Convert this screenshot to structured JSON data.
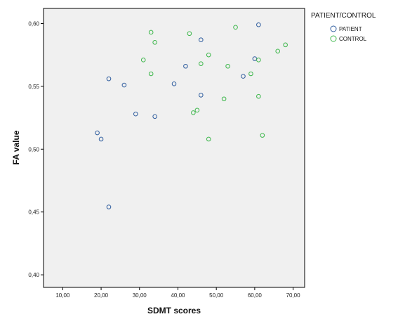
{
  "chart_data": {
    "type": "scatter",
    "xlabel": "SDMT scores",
    "ylabel": "FA value",
    "xlim": [
      5,
      73
    ],
    "ylim": [
      0.39,
      0.612
    ],
    "x_ticks": [
      10,
      20,
      30,
      40,
      50,
      60,
      70
    ],
    "x_tick_labels": [
      "10,00",
      "20,00",
      "30,00",
      "40,00",
      "50,00",
      "60,00",
      "70,00"
    ],
    "y_ticks": [
      0.4,
      0.45,
      0.5,
      0.55,
      0.6
    ],
    "y_tick_labels": [
      "0,40",
      "0,45",
      "0,50",
      "0,55",
      "0,60"
    ],
    "grid": false,
    "legend": {
      "title": "PATIENT/CONTROL",
      "placement": "top-right, outside plot"
    },
    "series": [
      {
        "name": "PATIENT",
        "color": "#2f5d9e",
        "points": [
          {
            "x": 19,
            "y": 0.513
          },
          {
            "x": 20,
            "y": 0.508
          },
          {
            "x": 22,
            "y": 0.556
          },
          {
            "x": 22,
            "y": 0.454
          },
          {
            "x": 26,
            "y": 0.551
          },
          {
            "x": 29,
            "y": 0.528
          },
          {
            "x": 34,
            "y": 0.526
          },
          {
            "x": 39,
            "y": 0.552
          },
          {
            "x": 42,
            "y": 0.566
          },
          {
            "x": 46,
            "y": 0.587
          },
          {
            "x": 46,
            "y": 0.543
          },
          {
            "x": 57,
            "y": 0.558
          },
          {
            "x": 60,
            "y": 0.572
          },
          {
            "x": 61,
            "y": 0.599
          }
        ]
      },
      {
        "name": "CONTROL",
        "color": "#3cb64a",
        "points": [
          {
            "x": 31,
            "y": 0.571
          },
          {
            "x": 33,
            "y": 0.593
          },
          {
            "x": 33,
            "y": 0.56
          },
          {
            "x": 34,
            "y": 0.585
          },
          {
            "x": 43,
            "y": 0.592
          },
          {
            "x": 44,
            "y": 0.529
          },
          {
            "x": 45,
            "y": 0.531
          },
          {
            "x": 46,
            "y": 0.568
          },
          {
            "x": 48,
            "y": 0.575
          },
          {
            "x": 48,
            "y": 0.508
          },
          {
            "x": 52,
            "y": 0.54
          },
          {
            "x": 53,
            "y": 0.566
          },
          {
            "x": 55,
            "y": 0.597
          },
          {
            "x": 59,
            "y": 0.56
          },
          {
            "x": 61,
            "y": 0.571
          },
          {
            "x": 61,
            "y": 0.542
          },
          {
            "x": 62,
            "y": 0.511
          },
          {
            "x": 66,
            "y": 0.578
          },
          {
            "x": 68,
            "y": 0.583
          }
        ]
      }
    ]
  }
}
